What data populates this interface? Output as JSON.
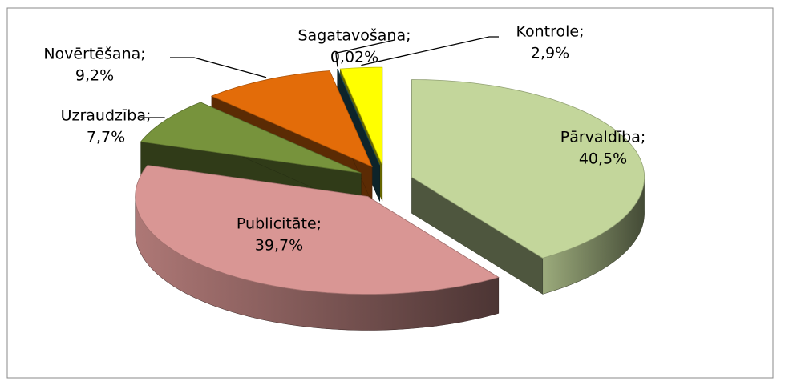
{
  "chart_data": {
    "type": "pie3d",
    "categories": [
      "Pārvaldība;",
      "Publicitāte;",
      "Uzraudzība;",
      "Novērtēšana;",
      "Sagatavošana;",
      "Kontrole;"
    ],
    "values": [
      40.5,
      39.7,
      7.7,
      9.2,
      0.02,
      2.9
    ],
    "value_labels": [
      "40,5%",
      "39,7%",
      "7,7%",
      "9,2%",
      "0,02%",
      "2,9%"
    ],
    "colors": [
      "#c3d69b",
      "#d99694",
      "#77933c",
      "#e36c09",
      "#215968",
      "#ffff00"
    ]
  }
}
